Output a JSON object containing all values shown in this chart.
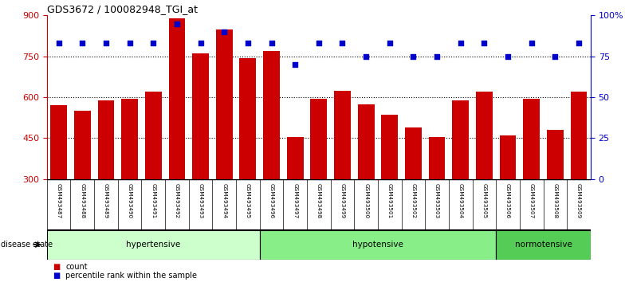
{
  "title": "GDS3672 / 100082948_TGI_at",
  "samples": [
    "GSM493487",
    "GSM493488",
    "GSM493489",
    "GSM493490",
    "GSM493491",
    "GSM493492",
    "GSM493493",
    "GSM493494",
    "GSM493495",
    "GSM493496",
    "GSM493497",
    "GSM493498",
    "GSM493499",
    "GSM493500",
    "GSM493501",
    "GSM493502",
    "GSM493503",
    "GSM493504",
    "GSM493505",
    "GSM493506",
    "GSM493507",
    "GSM493508",
    "GSM493509"
  ],
  "counts": [
    570,
    550,
    590,
    595,
    620,
    890,
    760,
    850,
    745,
    770,
    455,
    595,
    625,
    575,
    535,
    490,
    455,
    590,
    620,
    460,
    595,
    480,
    620
  ],
  "percentile_ranks": [
    83,
    83,
    83,
    83,
    83,
    95,
    83,
    90,
    83,
    83,
    70,
    83,
    83,
    75,
    83,
    75,
    75,
    83,
    83,
    75,
    83,
    75,
    83
  ],
  "disease_groups": [
    {
      "label": "hypertensive",
      "start": 0,
      "end": 8,
      "color": "#ccffcc"
    },
    {
      "label": "hypotensive",
      "start": 9,
      "end": 18,
      "color": "#88ee88"
    },
    {
      "label": "normotensive",
      "start": 19,
      "end": 22,
      "color": "#55cc55"
    }
  ],
  "bar_color": "#cc0000",
  "dot_color": "#0000cc",
  "ylim_left": [
    300,
    900
  ],
  "ylim_right": [
    0,
    100
  ],
  "yticks_left": [
    300,
    450,
    600,
    750,
    900
  ],
  "yticks_right": [
    0,
    25,
    50,
    75,
    100
  ],
  "ytick_labels_right": [
    "0",
    "25",
    "50",
    "75",
    "100%"
  ],
  "grid_values": [
    450,
    600,
    750
  ],
  "bar_width": 0.7,
  "bg_color": "#ffffff",
  "tick_label_color_left": "#cc0000",
  "tick_label_color_right": "#0000cc",
  "xlabel_area_color": "#cccccc",
  "legend_count_label": "count",
  "legend_percentile_label": "percentile rank within the sample",
  "disease_state_label": "disease state"
}
